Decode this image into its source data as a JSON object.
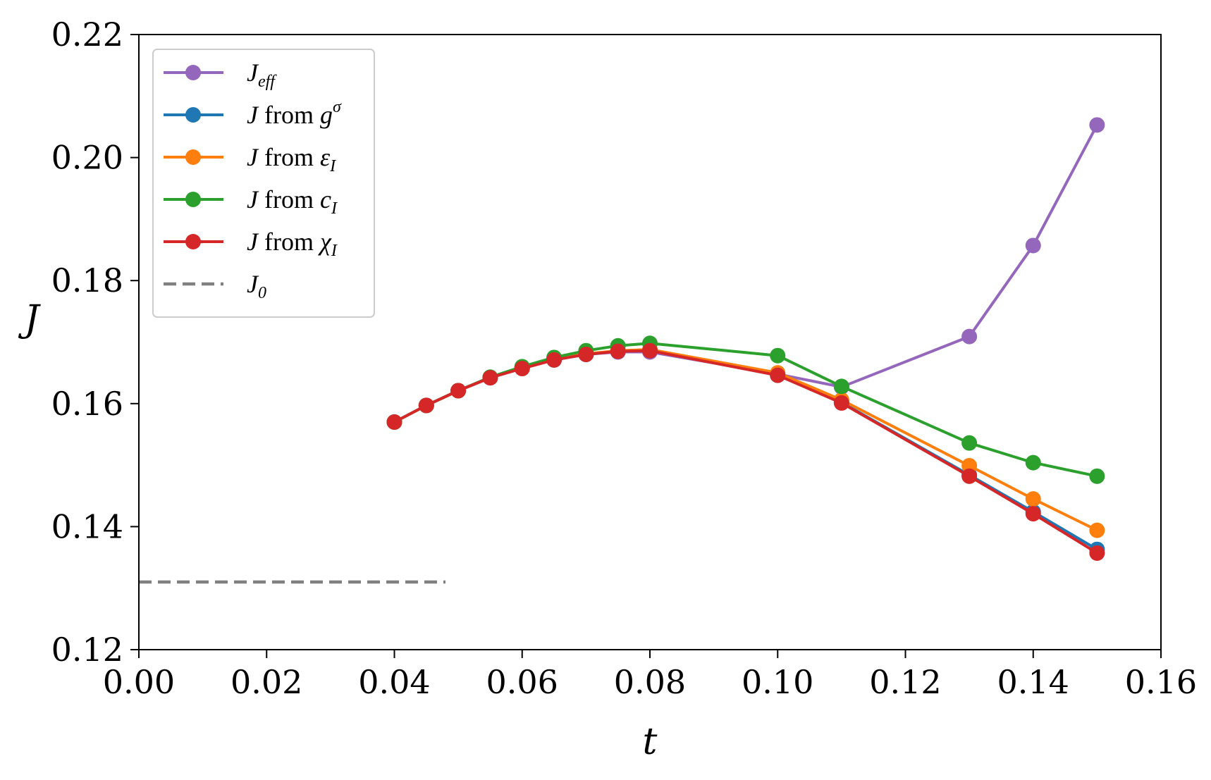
{
  "chart_data": {
    "type": "line",
    "title": "",
    "xlabel": "t",
    "ylabel": "J",
    "xlim": [
      0.0,
      0.16
    ],
    "ylim": [
      0.12,
      0.22
    ],
    "xticks": [
      "0.00",
      "0.02",
      "0.04",
      "0.06",
      "0.08",
      "0.10",
      "0.12",
      "0.14",
      "0.16"
    ],
    "yticks": [
      "0.12",
      "0.14",
      "0.16",
      "0.18",
      "0.20",
      "0.22"
    ],
    "grid": false,
    "legend_position": "upper-left",
    "x": [
      0.04,
      0.045,
      0.05,
      0.055,
      0.06,
      0.065,
      0.07,
      0.075,
      0.08,
      0.1,
      0.11,
      0.13,
      0.14,
      0.15
    ],
    "series": [
      {
        "name": "J_eff",
        "label_main": "J",
        "label_sub": "eff",
        "label_sup": "",
        "label_prefix": "",
        "color": "#9467bd",
        "values": [
          0.157,
          0.1597,
          0.1621,
          0.1642,
          0.1658,
          0.1672,
          0.168,
          0.1684,
          0.1684,
          0.1648,
          0.1627,
          0.1709,
          0.1857,
          0.2053
        ]
      },
      {
        "name": "J from g^σ",
        "label_main": "J",
        "label_mid": " from ",
        "label_var": "g",
        "label_sub": "",
        "label_sup": "σ",
        "color": "#1f77b4",
        "values": [
          0.157,
          0.1597,
          0.1621,
          0.1642,
          0.1658,
          0.1671,
          0.168,
          0.1685,
          0.1687,
          0.1646,
          0.1602,
          0.1484,
          0.1424,
          0.1363
        ]
      },
      {
        "name": "J from ε_I",
        "label_main": "J",
        "label_mid": " from ",
        "label_var": "ε",
        "label_sub": "I",
        "label_sup": "",
        "color": "#ff7f0e",
        "values": [
          0.157,
          0.1597,
          0.1621,
          0.1642,
          0.1658,
          0.1672,
          0.1681,
          0.1686,
          0.1688,
          0.165,
          0.1606,
          0.1499,
          0.1445,
          0.1394
        ]
      },
      {
        "name": "J from c_I",
        "label_main": "J",
        "label_mid": " from ",
        "label_var": "c",
        "label_sub": "I",
        "label_sup": "",
        "color": "#2ca02c",
        "values": [
          0.157,
          0.1597,
          0.1621,
          0.1643,
          0.166,
          0.1675,
          0.1686,
          0.1694,
          0.1698,
          0.1678,
          0.1628,
          0.1536,
          0.1504,
          0.1482
        ]
      },
      {
        "name": "J from χ_I",
        "label_main": "J",
        "label_mid": " from ",
        "label_var": "χ",
        "label_sub": "I",
        "label_sup": "",
        "color": "#d62728",
        "values": [
          0.157,
          0.1597,
          0.1621,
          0.1642,
          0.1657,
          0.1671,
          0.168,
          0.1685,
          0.1686,
          0.1646,
          0.1601,
          0.1482,
          0.1421,
          0.1357
        ]
      }
    ],
    "reference_line": {
      "name": "J_0",
      "label_main": "J",
      "label_sub": "0",
      "color": "#808080",
      "style": "dashed",
      "y": 0.131,
      "x_range": [
        0.0,
        0.048
      ]
    }
  }
}
